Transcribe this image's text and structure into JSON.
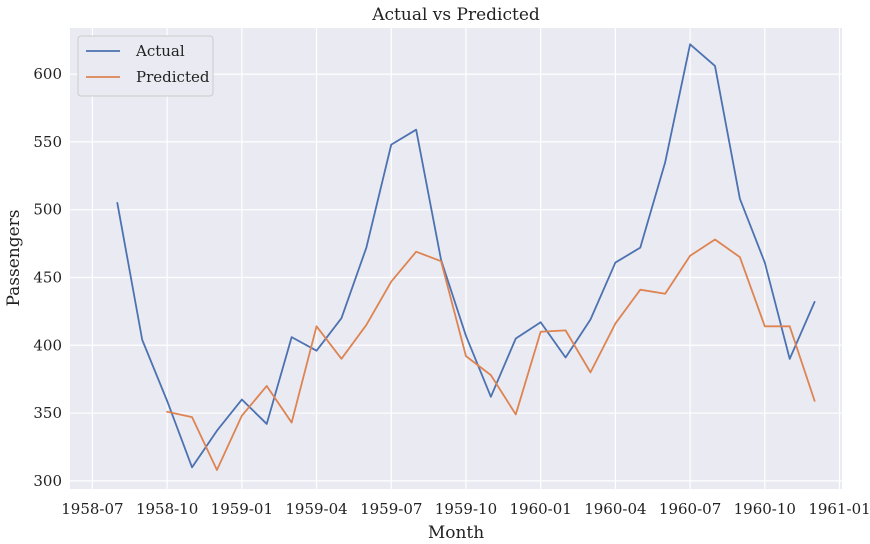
{
  "chart_data": {
    "type": "line",
    "title": "Actual vs Predicted",
    "xlabel": "Month",
    "ylabel": "Passengers",
    "x_ticks": [
      "1958-07",
      "1958-10",
      "1959-01",
      "1959-04",
      "1959-07",
      "1959-10",
      "1960-01",
      "1960-04",
      "1960-07",
      "1960-10",
      "1961-01"
    ],
    "x_tick_months": [
      0,
      3,
      6,
      9,
      12,
      15,
      18,
      21,
      24,
      27,
      30
    ],
    "xlim": [
      -0.9,
      30.1
    ],
    "y_ticks": [
      300,
      350,
      400,
      450,
      500,
      550,
      600
    ],
    "ylim": [
      294,
      634
    ],
    "grid": true,
    "legend_position": "top-left",
    "series": [
      {
        "name": "Actual",
        "color": "#4c72b0",
        "x": [
          1,
          2,
          3,
          4,
          5,
          6,
          7,
          8,
          9,
          10,
          11,
          12,
          13,
          14,
          15,
          16,
          17,
          18,
          19,
          20,
          21,
          22,
          23,
          24,
          25,
          26,
          27,
          28,
          29
        ],
        "values": [
          505,
          404,
          359,
          310,
          337,
          360,
          342,
          406,
          396,
          420,
          472,
          548,
          559,
          463,
          407,
          362,
          405,
          417,
          391,
          419,
          461,
          472,
          535,
          622,
          606,
          508,
          461,
          390,
          432
        ]
      },
      {
        "name": "Predicted",
        "color": "#dd8452",
        "x": [
          3,
          4,
          5,
          6,
          7,
          8,
          9,
          10,
          11,
          12,
          13,
          14,
          15,
          16,
          17,
          18,
          19,
          20,
          21,
          22,
          23,
          24,
          25,
          26,
          27,
          28,
          29
        ],
        "values": [
          351,
          347,
          308,
          348,
          370,
          343,
          414,
          390,
          415,
          447,
          469,
          462,
          392,
          378,
          349,
          410,
          411,
          380,
          416,
          441,
          438,
          466,
          478,
          465,
          414,
          414,
          359
        ]
      }
    ]
  }
}
